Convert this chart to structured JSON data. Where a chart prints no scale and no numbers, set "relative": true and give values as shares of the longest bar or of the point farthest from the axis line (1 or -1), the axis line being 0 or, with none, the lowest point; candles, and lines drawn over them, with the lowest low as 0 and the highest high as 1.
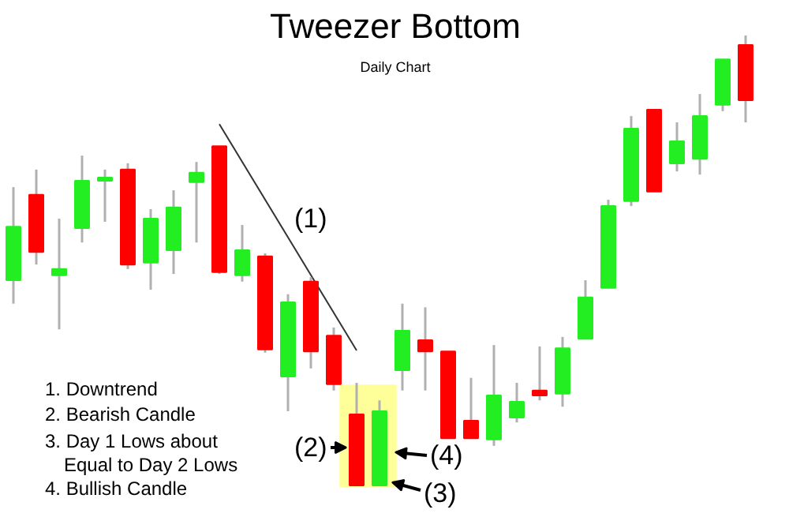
{
  "chart_data": {
    "type": "candlestick",
    "title": "Tweezer Bottom",
    "subtitle": "Daily Chart",
    "relative": true,
    "categories": [
      null,
      null,
      null,
      null,
      null,
      null,
      null,
      null,
      null,
      null,
      null,
      null,
      null,
      null,
      null,
      null,
      null,
      null,
      null,
      null,
      null,
      null,
      null,
      null,
      null,
      null,
      null,
      null,
      null,
      null,
      null,
      null,
      null
    ],
    "ohlc": [
      [
        0.456,
        0.663,
        0.404,
        0.575
      ],
      [
        0.646,
        0.702,
        0.491,
        0.519
      ],
      [
        0.467,
        0.593,
        0.347,
        0.481
      ],
      [
        0.572,
        0.733,
        0.54,
        0.677
      ],
      [
        0.677,
        0.702,
        0.586,
        0.684
      ],
      [
        0.702,
        0.716,
        0.481,
        0.491
      ],
      [
        0.495,
        0.614,
        0.435,
        0.593
      ],
      [
        0.523,
        0.656,
        0.47,
        0.618
      ],
      [
        0.674,
        0.719,
        0.54,
        0.695
      ],
      [
        0.754,
        0.754,
        0.47,
        0.474
      ],
      [
        0.467,
        0.579,
        0.453,
        0.523
      ],
      [
        0.509,
        0.516,
        0.295,
        0.302
      ],
      [
        0.242,
        0.425,
        0.165,
        0.407
      ],
      [
        0.453,
        0.463,
        0.26,
        0.298
      ],
      [
        0.333,
        0.351,
        0.211,
        0.225
      ],
      [
        0.158,
        0.228,
        0,
        0
      ],
      [
        0,
        0.189,
        0,
        0.165
      ],
      [
        0.256,
        0.404,
        0.211,
        0.344
      ],
      [
        0.323,
        0.396,
        0.211,
        0.298
      ],
      [
        0.298,
        0.298,
        0.105,
        0.105
      ],
      [
        0.144,
        0.239,
        0.105,
        0.105
      ],
      [
        0.102,
        0.312,
        0.088,
        0.2
      ],
      [
        0.151,
        0.228,
        0.14,
        0.186
      ],
      [
        0.211,
        0.309,
        0.189,
        0.2
      ],
      [
        0.204,
        0.33,
        0.175,
        0.305
      ],
      [
        0.326,
        0.456,
        0.326,
        0.418
      ],
      [
        0.439,
        0.635,
        0.439,
        0.621
      ],
      [
        0.632,
        0.821,
        0.621,
        0.793
      ],
      [
        0.835,
        0.835,
        0.653,
        0.653
      ],
      [
        0.716,
        0.807,
        0.698,
        0.765
      ],
      [
        0.726,
        0.87,
        0.691,
        0.821
      ],
      [
        0.846,
        0.947,
        0.832,
        0.947
      ],
      [
        0.979,
        1,
        0.807,
        0.856
      ]
    ],
    "colors": [
      "#22ee22",
      "#ff0000",
      "#22ee22",
      "#22ee22",
      "#22ee22",
      "#ff0000",
      "#22ee22",
      "#22ee22",
      "#22ee22",
      "#ff0000",
      "#22ee22",
      "#ff0000",
      "#22ee22",
      "#ff0000",
      "#ff0000",
      "#ff0000",
      "#22ee22",
      "#22ee22",
      "#ff0000",
      "#ff0000",
      "#ff0000",
      "#22ee22",
      "#22ee22",
      "#ff0000",
      "#22ee22",
      "#22ee22",
      "#22ee22",
      "#22ee22",
      "#ff0000",
      "#22ee22",
      "#22ee22",
      "#22ee22",
      "#ff0000"
    ],
    "series": [
      {
        "type": "bar",
        "color": "#ffff99",
        "base": [
          null,
          null,
          null,
          null,
          null,
          null,
          null,
          null,
          null,
          null,
          null,
          null,
          null,
          null,
          null,
          -0.004,
          -0.004,
          null,
          null,
          null,
          null,
          null,
          null,
          null,
          null,
          null,
          null,
          null,
          null,
          null,
          null,
          null,
          null
        ],
        "values": [
          null,
          null,
          null,
          null,
          null,
          null,
          null,
          null,
          null,
          null,
          null,
          null,
          null,
          null,
          null,
          0.228,
          0.228,
          null,
          null,
          null,
          null,
          null,
          null,
          null,
          null,
          null,
          null,
          null,
          null,
          null,
          null,
          null,
          null
        ]
      },
      {
        "type": "line",
        "color": "#333333",
        "values": [
          null,
          null,
          null,
          null,
          null,
          null,
          null,
          null,
          null,
          0.803,
          null,
          null,
          null,
          null,
          null,
          0.3,
          null,
          null,
          null,
          null,
          null,
          null,
          null,
          null,
          null,
          null,
          null,
          null,
          null,
          null,
          null,
          null,
          null
        ]
      }
    ],
    "annotations": [
      "(1)",
      "(2)",
      "(3)",
      "(4)",
      "1. Downtrend",
      "2. Bearish Candle",
      "3. Day 1 Lows about\nEqual to Day 2 Lows",
      "4. Bullish Candle"
    ]
  }
}
